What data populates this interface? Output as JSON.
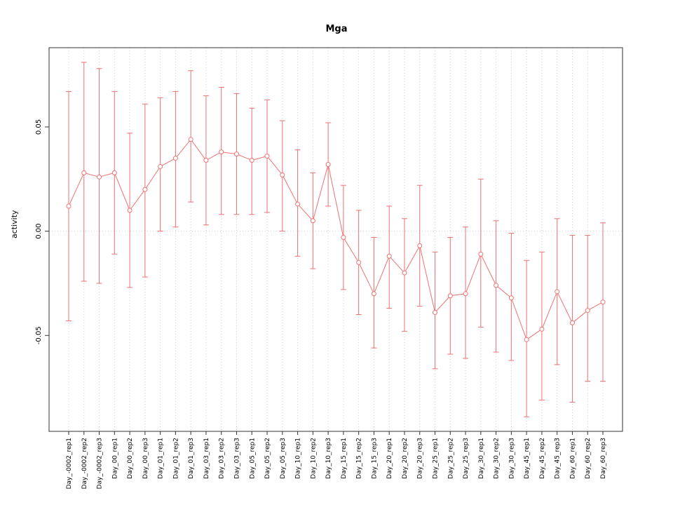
{
  "title": "Mga",
  "axes": {
    "ylabel": "activity",
    "ytick_labels": [
      "-0.05",
      "0.00",
      "0.05"
    ]
  },
  "colors": {
    "series": "#ee7272",
    "grid": "#cccccc",
    "axis": "#333333",
    "background": "#ffffff"
  },
  "chart_data": {
    "type": "line",
    "title": "Mga",
    "xlabel": "",
    "ylabel": "activity",
    "ylim": [
      -0.096,
      0.088
    ],
    "yticks": [
      -0.05,
      0,
      0.05
    ],
    "ytick_labels": [
      "-0.05",
      "0.00",
      "0.05"
    ],
    "grid": "dotted vertical line at each category plus dotted horizontal line at 0",
    "legend": "none",
    "marker": "open-circle",
    "error_bars": true,
    "series_color": "#ee7272",
    "grid_color": "#cccccc",
    "categories": [
      "Day_-0002_rep1",
      "Day_-0002_rep2",
      "Day_-0002_rep3",
      "Day_00_rep1",
      "Day_00_rep2",
      "Day_00_rep3",
      "Day_01_rep1",
      "Day_01_rep2",
      "Day_01_rep3",
      "Day_03_rep1",
      "Day_03_rep2",
      "Day_03_rep3",
      "Day_05_rep1",
      "Day_05_rep2",
      "Day_05_rep3",
      "Day_10_rep1",
      "Day_10_rep2",
      "Day_10_rep3",
      "Day_15_rep1",
      "Day_15_rep2",
      "Day_15_rep3",
      "Day_20_rep1",
      "Day_20_rep2",
      "Day_20_rep3",
      "Day_25_rep1",
      "Day_25_rep2",
      "Day_25_rep3",
      "Day_30_rep1",
      "Day_30_rep2",
      "Day_30_rep3",
      "Day_45_rep1",
      "Day_45_rep2",
      "Day_45_rep3",
      "Day_60_rep1",
      "Day_60_rep2",
      "Day_60_rep3"
    ],
    "series": [
      {
        "name": "activity",
        "values": [
          0.012,
          0.028,
          0.026,
          0.028,
          0.01,
          0.02,
          0.031,
          0.035,
          0.044,
          0.034,
          0.038,
          0.037,
          0.034,
          0.036,
          0.027,
          0.013,
          0.005,
          0.032,
          -0.003,
          -0.015,
          -0.03,
          -0.012,
          -0.02,
          -0.007,
          -0.039,
          -0.031,
          -0.03,
          -0.011,
          -0.026,
          -0.032,
          -0.052,
          -0.047,
          -0.029,
          -0.044,
          -0.038,
          -0.034
        ],
        "upper": [
          0.067,
          0.081,
          0.078,
          0.067,
          0.047,
          0.061,
          0.064,
          0.067,
          0.077,
          0.065,
          0.069,
          0.066,
          0.059,
          0.063,
          0.053,
          0.039,
          0.028,
          0.052,
          0.022,
          0.01,
          -0.003,
          0.012,
          0.006,
          0.022,
          -0.01,
          -0.003,
          0.002,
          0.025,
          0.005,
          -0.001,
          -0.014,
          -0.01,
          0.006,
          -0.002,
          -0.002,
          0.004
        ],
        "lower": [
          -0.043,
          -0.024,
          -0.025,
          -0.011,
          -0.027,
          -0.022,
          0.0,
          0.002,
          0.014,
          0.003,
          0.008,
          0.008,
          0.008,
          0.009,
          0.0,
          -0.012,
          -0.018,
          0.012,
          -0.028,
          -0.04,
          -0.056,
          -0.037,
          -0.048,
          -0.036,
          -0.066,
          -0.059,
          -0.061,
          -0.046,
          -0.058,
          -0.062,
          -0.089,
          -0.081,
          -0.064,
          -0.082,
          -0.072,
          -0.072
        ]
      }
    ]
  }
}
